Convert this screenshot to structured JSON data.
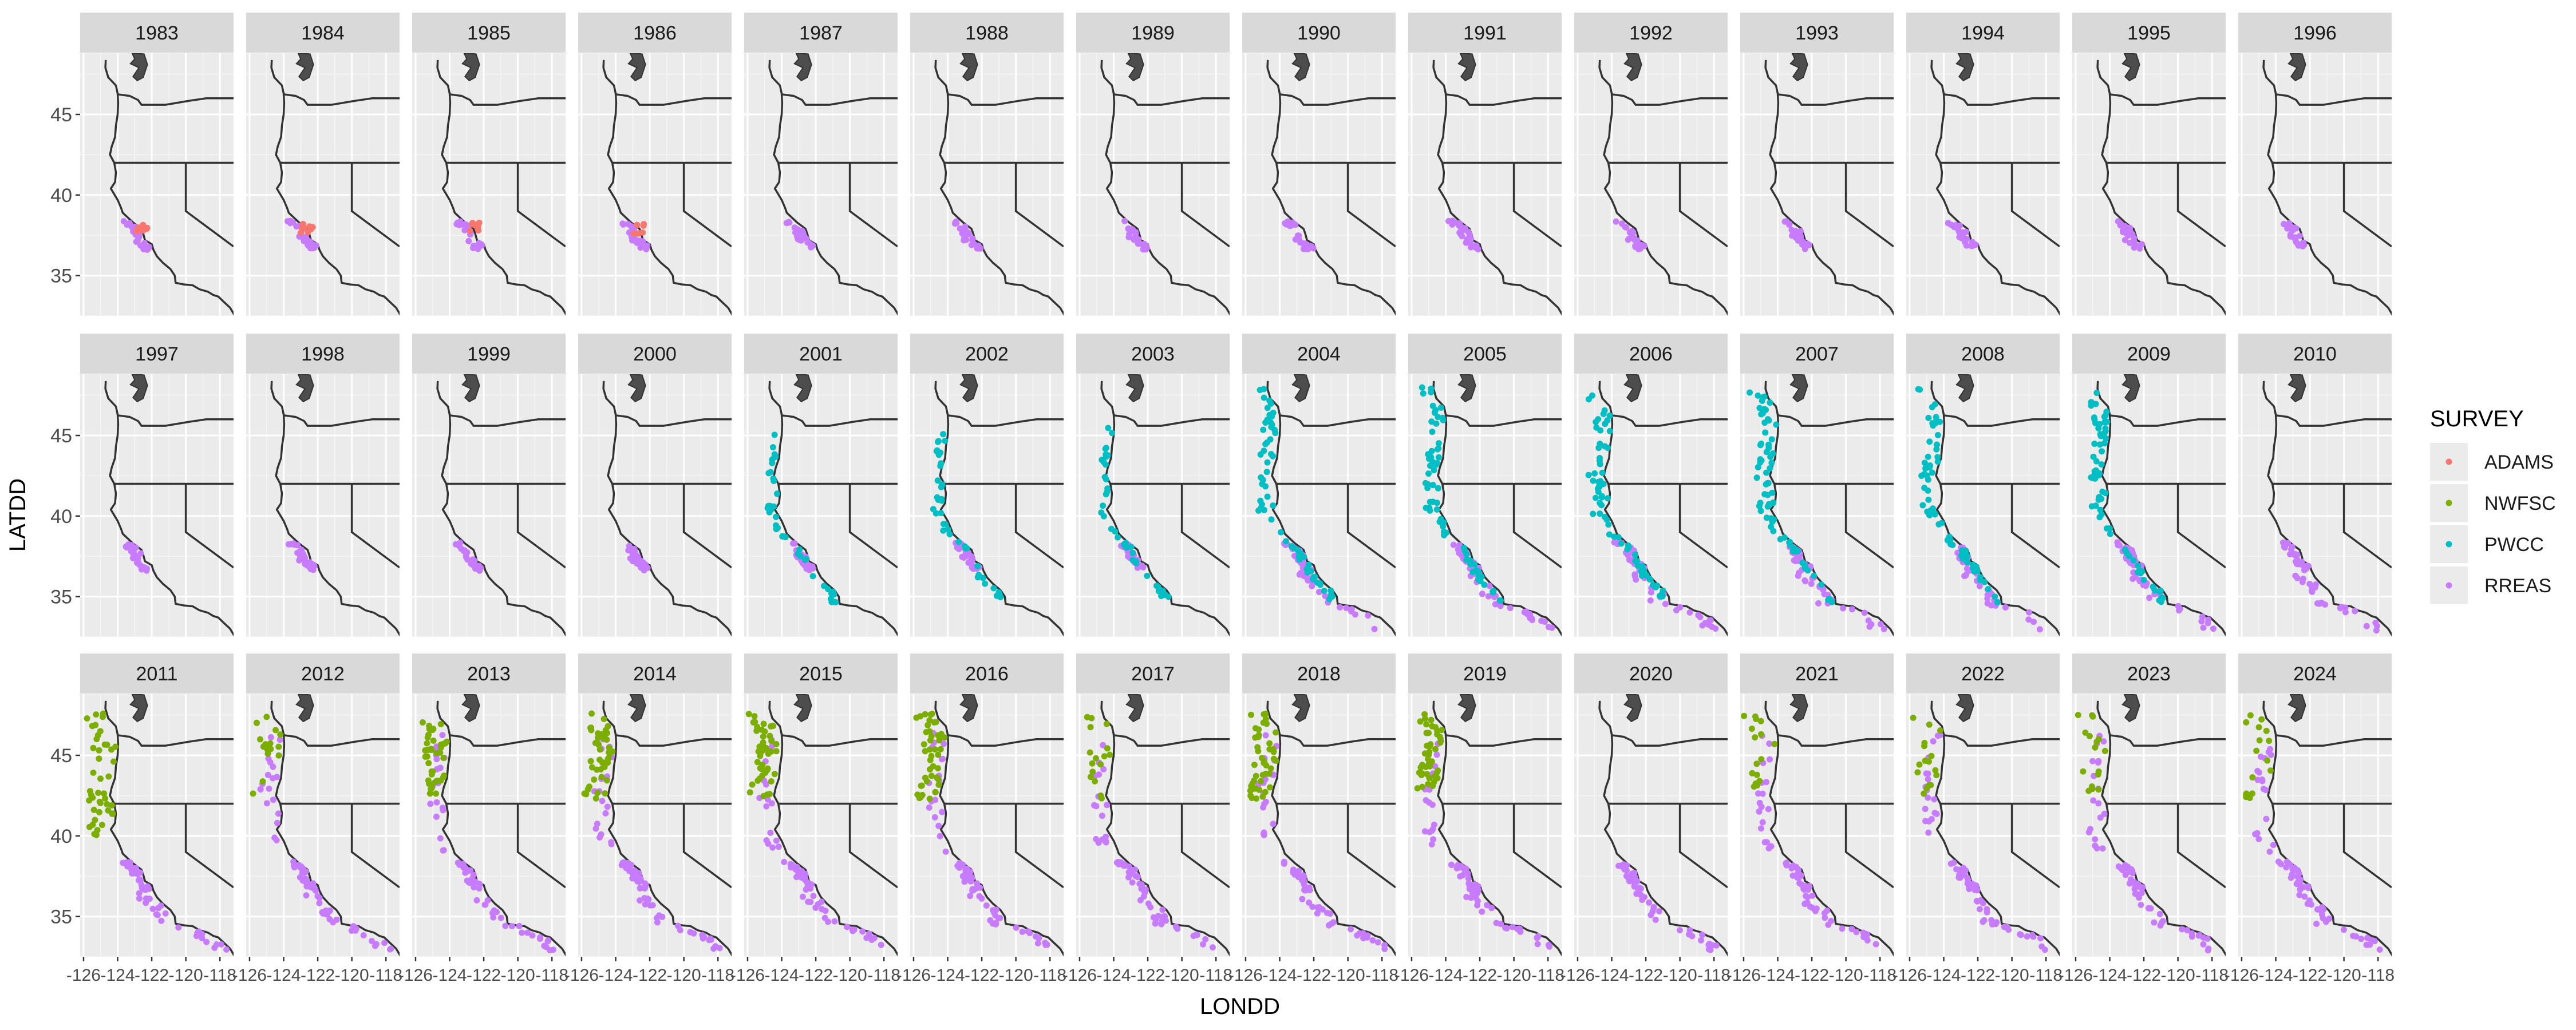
{
  "chart_data": {
    "type": "scatter",
    "facet": "YEAR",
    "x_label": "LONDD",
    "y_label": "LATDD",
    "x_ticks": [
      -126,
      -124,
      -122,
      -120,
      -118
    ],
    "y_ticks": [
      35,
      40,
      45
    ],
    "xlim": [
      -126.2,
      -117.2
    ],
    "ylim": [
      32.5,
      48.8
    ],
    "legend": {
      "title": "SURVEY",
      "position": "right",
      "entries": [
        {
          "name": "ADAMS",
          "color": "#F8766D"
        },
        {
          "name": "NWFSC",
          "color": "#7CAE00"
        },
        {
          "name": "PWCC",
          "color": "#00BFC4"
        },
        {
          "name": "RREAS",
          "color": "#C77CFF"
        }
      ]
    },
    "facets": [
      {
        "year": "1983",
        "surveys": [
          "ADAMS",
          "RREAS"
        ]
      },
      {
        "year": "1984",
        "surveys": [
          "ADAMS",
          "RREAS"
        ]
      },
      {
        "year": "1985",
        "surveys": [
          "ADAMS",
          "RREAS"
        ]
      },
      {
        "year": "1986",
        "surveys": [
          "ADAMS",
          "RREAS"
        ]
      },
      {
        "year": "1987",
        "surveys": [
          "RREAS"
        ]
      },
      {
        "year": "1988",
        "surveys": [
          "RREAS"
        ]
      },
      {
        "year": "1989",
        "surveys": [
          "RREAS"
        ]
      },
      {
        "year": "1990",
        "surveys": [
          "RREAS"
        ]
      },
      {
        "year": "1991",
        "surveys": [
          "RREAS"
        ]
      },
      {
        "year": "1992",
        "surveys": [
          "RREAS"
        ]
      },
      {
        "year": "1993",
        "surveys": [
          "RREAS"
        ]
      },
      {
        "year": "1994",
        "surveys": [
          "RREAS"
        ]
      },
      {
        "year": "1995",
        "surveys": [
          "RREAS"
        ]
      },
      {
        "year": "1996",
        "surveys": [
          "RREAS"
        ]
      },
      {
        "year": "1997",
        "surveys": [
          "RREAS"
        ]
      },
      {
        "year": "1998",
        "surveys": [
          "RREAS"
        ]
      },
      {
        "year": "1999",
        "surveys": [
          "RREAS"
        ]
      },
      {
        "year": "2000",
        "surveys": [
          "RREAS"
        ]
      },
      {
        "year": "2001",
        "surveys": [
          "PWCC",
          "RREAS"
        ]
      },
      {
        "year": "2002",
        "surveys": [
          "PWCC",
          "RREAS"
        ]
      },
      {
        "year": "2003",
        "surveys": [
          "PWCC",
          "RREAS"
        ]
      },
      {
        "year": "2004",
        "surveys": [
          "PWCC",
          "RREAS"
        ]
      },
      {
        "year": "2005",
        "surveys": [
          "PWCC",
          "RREAS"
        ]
      },
      {
        "year": "2006",
        "surveys": [
          "PWCC",
          "RREAS"
        ]
      },
      {
        "year": "2007",
        "surveys": [
          "PWCC",
          "RREAS"
        ]
      },
      {
        "year": "2008",
        "surveys": [
          "PWCC",
          "RREAS"
        ]
      },
      {
        "year": "2009",
        "surveys": [
          "PWCC",
          "RREAS"
        ]
      },
      {
        "year": "2010",
        "surveys": [
          "RREAS"
        ]
      },
      {
        "year": "2011",
        "surveys": [
          "NWFSC",
          "RREAS"
        ]
      },
      {
        "year": "2012",
        "surveys": [
          "NWFSC",
          "RREAS"
        ]
      },
      {
        "year": "2013",
        "surveys": [
          "NWFSC",
          "RREAS"
        ]
      },
      {
        "year": "2014",
        "surveys": [
          "NWFSC",
          "RREAS"
        ]
      },
      {
        "year": "2015",
        "surveys": [
          "NWFSC",
          "RREAS"
        ]
      },
      {
        "year": "2016",
        "surveys": [
          "NWFSC",
          "RREAS"
        ]
      },
      {
        "year": "2017",
        "surveys": [
          "NWFSC",
          "RREAS"
        ]
      },
      {
        "year": "2018",
        "surveys": [
          "NWFSC",
          "RREAS"
        ]
      },
      {
        "year": "2019",
        "surveys": [
          "NWFSC",
          "RREAS"
        ]
      },
      {
        "year": "2020",
        "surveys": [
          "RREAS"
        ]
      },
      {
        "year": "2021",
        "surveys": [
          "NWFSC",
          "RREAS"
        ]
      },
      {
        "year": "2022",
        "surveys": [
          "NWFSC",
          "RREAS"
        ]
      },
      {
        "year": "2023",
        "surveys": [
          "NWFSC",
          "RREAS"
        ]
      },
      {
        "year": "2024",
        "surveys": [
          "NWFSC",
          "RREAS"
        ]
      }
    ]
  }
}
